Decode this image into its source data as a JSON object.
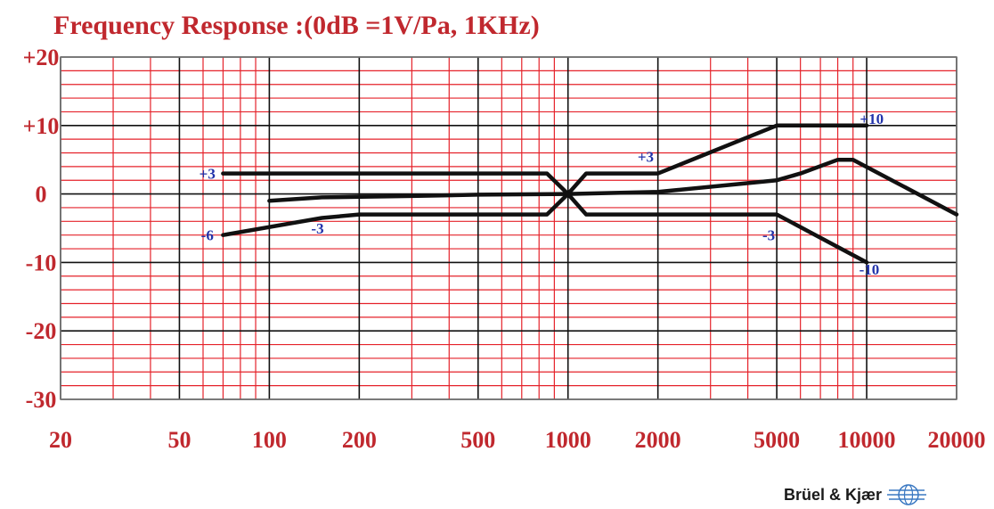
{
  "chart_data": {
    "type": "line",
    "title": "Frequency  Response :(0dB =1V/Pa, 1KHz)",
    "xscale": "log",
    "xlim": [
      20,
      20000
    ],
    "ylim": [
      -30,
      20
    ],
    "yticks": [
      {
        "value": 20,
        "label": "+20"
      },
      {
        "value": 10,
        "label": "+10"
      },
      {
        "value": 0,
        "label": "0"
      },
      {
        "value": -10,
        "label": "-10"
      },
      {
        "value": -20,
        "label": "-20"
      },
      {
        "value": -30,
        "label": "-30"
      }
    ],
    "xticks": [
      {
        "value": 20,
        "label": "20"
      },
      {
        "value": 50,
        "label": "50"
      },
      {
        "value": 100,
        "label": "100"
      },
      {
        "value": 200,
        "label": "200"
      },
      {
        "value": 500,
        "label": "500"
      },
      {
        "value": 1000,
        "label": "1000"
      },
      {
        "value": 2000,
        "label": "2000"
      },
      {
        "value": 5000,
        "label": "5000"
      },
      {
        "value": 10000,
        "label": "10000"
      },
      {
        "value": 20000,
        "label": "20000"
      }
    ],
    "grid": true,
    "grid_minor_db_step": 2,
    "series": [
      {
        "x": [
          100,
          150,
          300,
          500,
          1000,
          2000,
          5000,
          6000,
          8000,
          9000,
          20000
        ],
        "y": [
          -1,
          -0.5,
          -0.3,
          -0.1,
          0,
          0.3,
          2,
          3,
          5,
          5,
          -3
        ]
      },
      {
        "x": [
          70,
          850,
          1000,
          1150,
          2000,
          5000,
          10000
        ],
        "y": [
          3,
          3,
          0,
          3,
          3,
          10,
          10
        ]
      },
      {
        "x": [
          70,
          150,
          200,
          850,
          1000,
          1150,
          5000,
          10000
        ],
        "y": [
          -6,
          -3.5,
          -3,
          -3,
          0,
          -3,
          -3,
          -10
        ]
      }
    ],
    "annotations": [
      {
        "text": "+3",
        "x": 62,
        "y": 3
      },
      {
        "text": "-6",
        "x": 62,
        "y": -6
      },
      {
        "text": "-3",
        "x": 145,
        "y": -5
      },
      {
        "text": "+3",
        "x": 1820,
        "y": 5.5
      },
      {
        "text": "+10",
        "x": 10400,
        "y": 11
      },
      {
        "text": "-3",
        "x": 4700,
        "y": -6
      },
      {
        "text": "-10",
        "x": 10200,
        "y": -11
      }
    ],
    "colors": {
      "title": "#c0282e",
      "axis_text": "#c0282e",
      "grid_minor": "#e5222a",
      "grid_major": "#111111",
      "curve": "#111111",
      "annotation": "#2233aa"
    }
  },
  "brand": {
    "name": "Brüel & Kjær"
  }
}
